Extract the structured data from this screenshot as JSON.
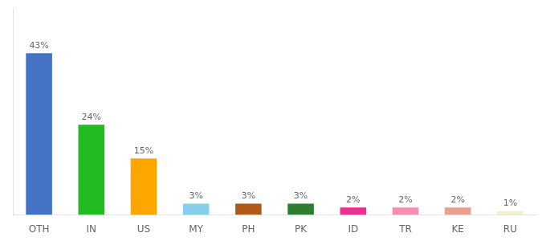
{
  "chart_data": {
    "type": "bar",
    "categories": [
      "OTH",
      "IN",
      "US",
      "MY",
      "PH",
      "PK",
      "ID",
      "TR",
      "KE",
      "RU"
    ],
    "values": [
      43,
      24,
      15,
      3,
      3,
      3,
      2,
      2,
      2,
      1
    ],
    "value_labels": [
      "43%",
      "24%",
      "15%",
      "3%",
      "3%",
      "3%",
      "2%",
      "2%",
      "2%",
      "1%"
    ],
    "data_labels": true,
    "colors": [
      "#4472c4",
      "#22bb22",
      "#ffa500",
      "#87ceeb",
      "#b05a1a",
      "#2e7d32",
      "#f03090",
      "#f48fb1",
      "#e8a090",
      "#f5f0c8"
    ],
    "ylim": [
      0,
      55
    ],
    "grid": false,
    "tick_labels": "x"
  }
}
